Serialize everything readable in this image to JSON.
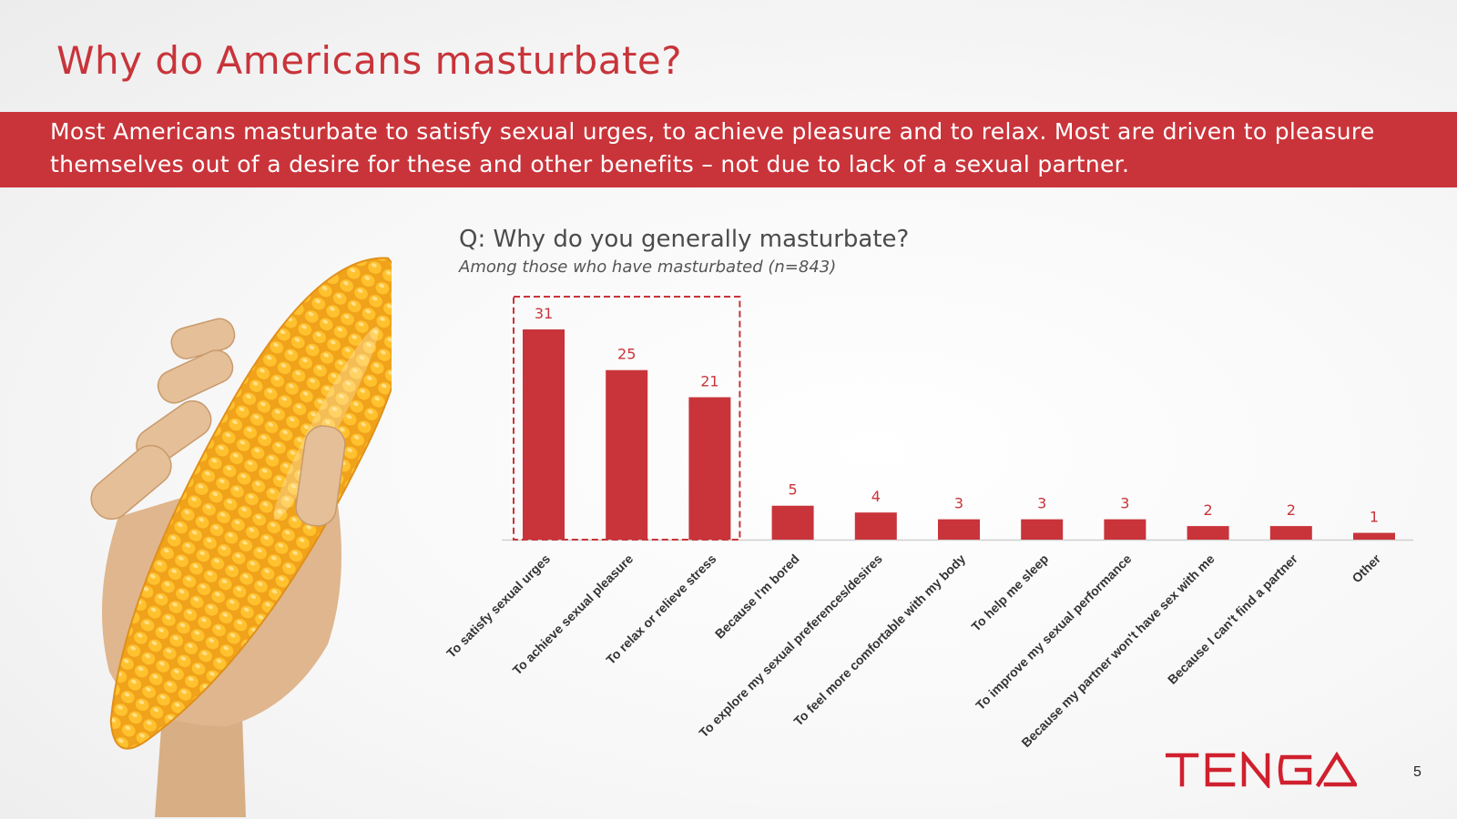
{
  "slide": {
    "title": "Why do Americans masturbate?",
    "banner_line1": "Most Americans masturbate to satisfy sexual urges, to achieve pleasure and to relax.  Most are driven to pleasure",
    "banner_line2": "themselves out of a desire for these and other benefits – not due to lack of a sexual partner.",
    "question": "Q: Why do you generally masturbate?",
    "subtitle": "Among those who have masturbated (n=843)",
    "brand": "TENGA",
    "page_number": "5"
  },
  "colors": {
    "accent": "#c9343a",
    "text_dark": "#333333"
  },
  "chart_data": {
    "type": "bar",
    "categories": [
      "To satisfy sexual urges",
      "To achieve sexual pleasure",
      "To relax or relieve stress",
      "Because I'm bored",
      "To explore my sexual preferences/desires",
      "To feel more comfortable with my body",
      "To help me sleep",
      "To improve my sexual performance",
      "Because my partner won't have sex with me",
      "Because I can't find a partner",
      "Other"
    ],
    "values": [
      31,
      25,
      21,
      5,
      4,
      3,
      3,
      3,
      2,
      2,
      1
    ],
    "ylim": [
      0,
      31
    ],
    "highlight_first_n": 3,
    "data_labels": true,
    "grid": false,
    "bar_color": "#c9343a"
  }
}
